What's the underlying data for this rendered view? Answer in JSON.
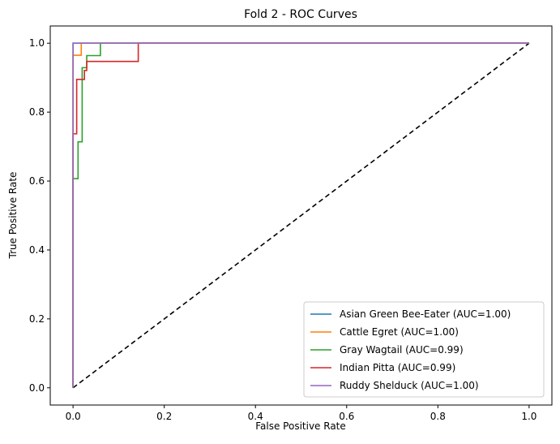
{
  "chart_data": {
    "type": "line",
    "title": "Fold 2 - ROC Curves",
    "xlabel": "False Positive Rate",
    "ylabel": "True Positive Rate",
    "xlim": [
      -0.05,
      1.05
    ],
    "ylim": [
      -0.05,
      1.05
    ],
    "xticks": [
      0.0,
      0.2,
      0.4,
      0.6,
      0.8,
      1.0
    ],
    "xtick_labels": [
      "0.0",
      "0.2",
      "0.4",
      "0.6",
      "0.8",
      "1.0"
    ],
    "yticks": [
      0.0,
      0.2,
      0.4,
      0.6,
      0.8,
      1.0
    ],
    "ytick_labels": [
      "0.0",
      "0.2",
      "0.4",
      "0.6",
      "0.8",
      "1.0"
    ],
    "grid": false,
    "legend_position": "lower right",
    "series": [
      {
        "name": "Asian Green Bee-Eater (AUC=1.00)",
        "color": "#1f77b4",
        "x": [
          0,
          0,
          0,
          0,
          1
        ],
        "y": [
          0,
          0.96,
          1.0,
          1.0,
          1.0
        ]
      },
      {
        "name": "Cattle Egret (AUC=1.00)",
        "color": "#ff7f0e",
        "x": [
          0,
          0,
          0.018,
          0.018,
          1
        ],
        "y": [
          0,
          0.965,
          0.965,
          1.0,
          1.0
        ]
      },
      {
        "name": "Gray Wagtail (AUC=0.99)",
        "color": "#2ca02c",
        "x": [
          0,
          0,
          0.011,
          0.011,
          0.02,
          0.02,
          0.03,
          0.03,
          0.06,
          0.06,
          1
        ],
        "y": [
          0,
          0.607,
          0.607,
          0.714,
          0.714,
          0.929,
          0.929,
          0.964,
          0.964,
          1.0,
          1.0
        ]
      },
      {
        "name": "Indian Pitta (AUC=0.99)",
        "color": "#d62728",
        "x": [
          0,
          0,
          0.008,
          0.008,
          0.025,
          0.025,
          0.03,
          0.03,
          0.143,
          0.143,
          1
        ],
        "y": [
          0,
          0.737,
          0.737,
          0.895,
          0.895,
          0.921,
          0.921,
          0.947,
          0.947,
          1.0,
          1.0
        ]
      },
      {
        "name": "Ruddy Shelduck (AUC=1.00)",
        "color": "#9467bd",
        "x": [
          0,
          0,
          1
        ],
        "y": [
          0,
          1.0,
          1.0
        ]
      }
    ],
    "reference_line": {
      "style": "dashed",
      "color": "#000000",
      "x": [
        0,
        1
      ],
      "y": [
        0,
        1
      ]
    }
  }
}
